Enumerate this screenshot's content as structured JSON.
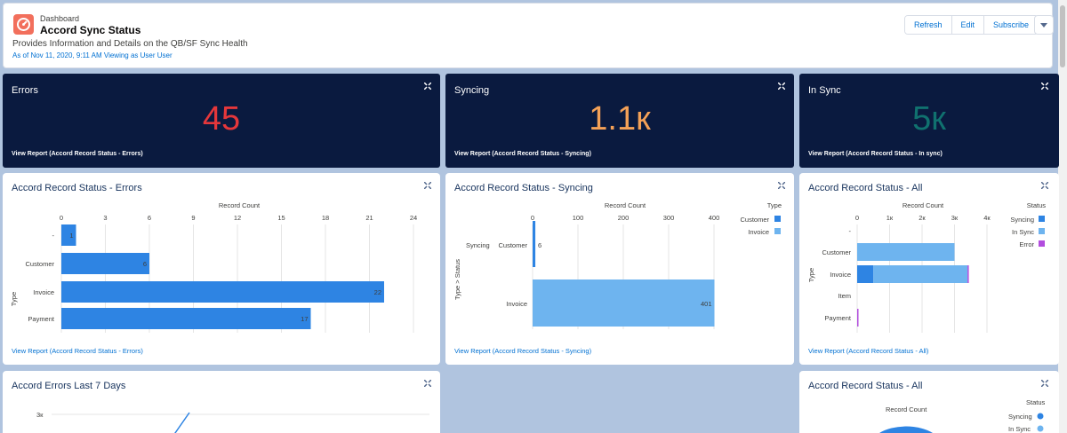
{
  "header": {
    "crumb": "Dashboard",
    "title": "Accord Sync Status",
    "subtitle": "Provides Information and Details on the QB/SF Sync Health",
    "as_of": "As of Nov 11, 2020, 9:11 AM Viewing as User User",
    "buttons": [
      "Refresh",
      "Edit",
      "Subscribe"
    ]
  },
  "kpis": [
    {
      "title": "Errors",
      "value": "45",
      "color": "#e5373b",
      "link": "View Report (Accord Record Status - Errors)"
    },
    {
      "title": "Syncing",
      "value": "1.1к",
      "color": "#f4a157",
      "link": "View Report (Accord Record Status - Syncing)"
    },
    {
      "title": "In Sync",
      "value": "5к",
      "color": "#10716f",
      "link": "View Report (Accord Record Status - In sync)"
    }
  ],
  "cards": {
    "errors": {
      "title": "Accord Record Status - Errors",
      "link": "View Report (Accord Record Status - Errors)"
    },
    "syncing": {
      "title": "Accord Record Status - Syncing",
      "link": "View Report (Accord Record Status - Syncing)"
    },
    "all": {
      "title": "Accord Record Status - All",
      "link": "View Report (Accord Record Status - All)"
    },
    "errors7": {
      "title": "Accord Errors Last 7 Days",
      "ytick": "3к"
    },
    "all2": {
      "title": "Accord Record Status - All",
      "measure": "Record Count",
      "legend_title": "Status",
      "legend": [
        "Syncing",
        "In Sync"
      ]
    }
  },
  "chart_data": [
    {
      "type": "bar",
      "orientation": "horizontal",
      "title": "Accord Record Status - Errors",
      "xlabel": "Record Count",
      "ylabel": "Type",
      "xticks": [
        "0",
        "3",
        "6",
        "9",
        "12",
        "15",
        "18",
        "21",
        "24"
      ],
      "xlim": [
        0,
        24
      ],
      "categories": [
        "-",
        "Customer",
        "Invoice",
        "Payment"
      ],
      "values": [
        1,
        6,
        22,
        17
      ],
      "color": "#2e84e3"
    },
    {
      "type": "bar",
      "orientation": "horizontal",
      "title": "Accord Record Status - Syncing",
      "xlabel": "Record Count",
      "ylabel": "Type  >  Status",
      "xticks": [
        "0",
        "100",
        "200",
        "300",
        "400"
      ],
      "xlim": [
        0,
        400
      ],
      "legend_title": "Type",
      "legend": [
        {
          "name": "Customer",
          "color": "#2e84e3"
        },
        {
          "name": "Invoice",
          "color": "#6eb4ef"
        }
      ],
      "groups": [
        {
          "label": "Syncing",
          "category": "Customer",
          "value": 6,
          "color": "#2e84e3"
        },
        {
          "label": "",
          "category": "Invoice",
          "value": 401,
          "color": "#6eb4ef"
        }
      ]
    },
    {
      "type": "bar",
      "orientation": "horizontal",
      "stacked": true,
      "title": "Accord Record Status - All",
      "xlabel": "Record Count",
      "ylabel": "Type",
      "xticks": [
        "0",
        "1к",
        "2к",
        "3к",
        "4к"
      ],
      "xlim": [
        0,
        4000
      ],
      "legend_title": "Status",
      "categories": [
        "-",
        "Customer",
        "Invoice",
        "Item",
        "Payment"
      ],
      "series": [
        {
          "name": "Syncing",
          "color": "#2e84e3",
          "values": [
            0,
            0,
            500,
            0,
            0
          ]
        },
        {
          "name": "In Sync",
          "color": "#6eb4ef",
          "values": [
            0,
            3000,
            2900,
            0,
            0
          ]
        },
        {
          "name": "Error",
          "color": "#b24dde",
          "values": [
            0,
            0,
            22,
            0,
            17
          ]
        }
      ]
    }
  ]
}
